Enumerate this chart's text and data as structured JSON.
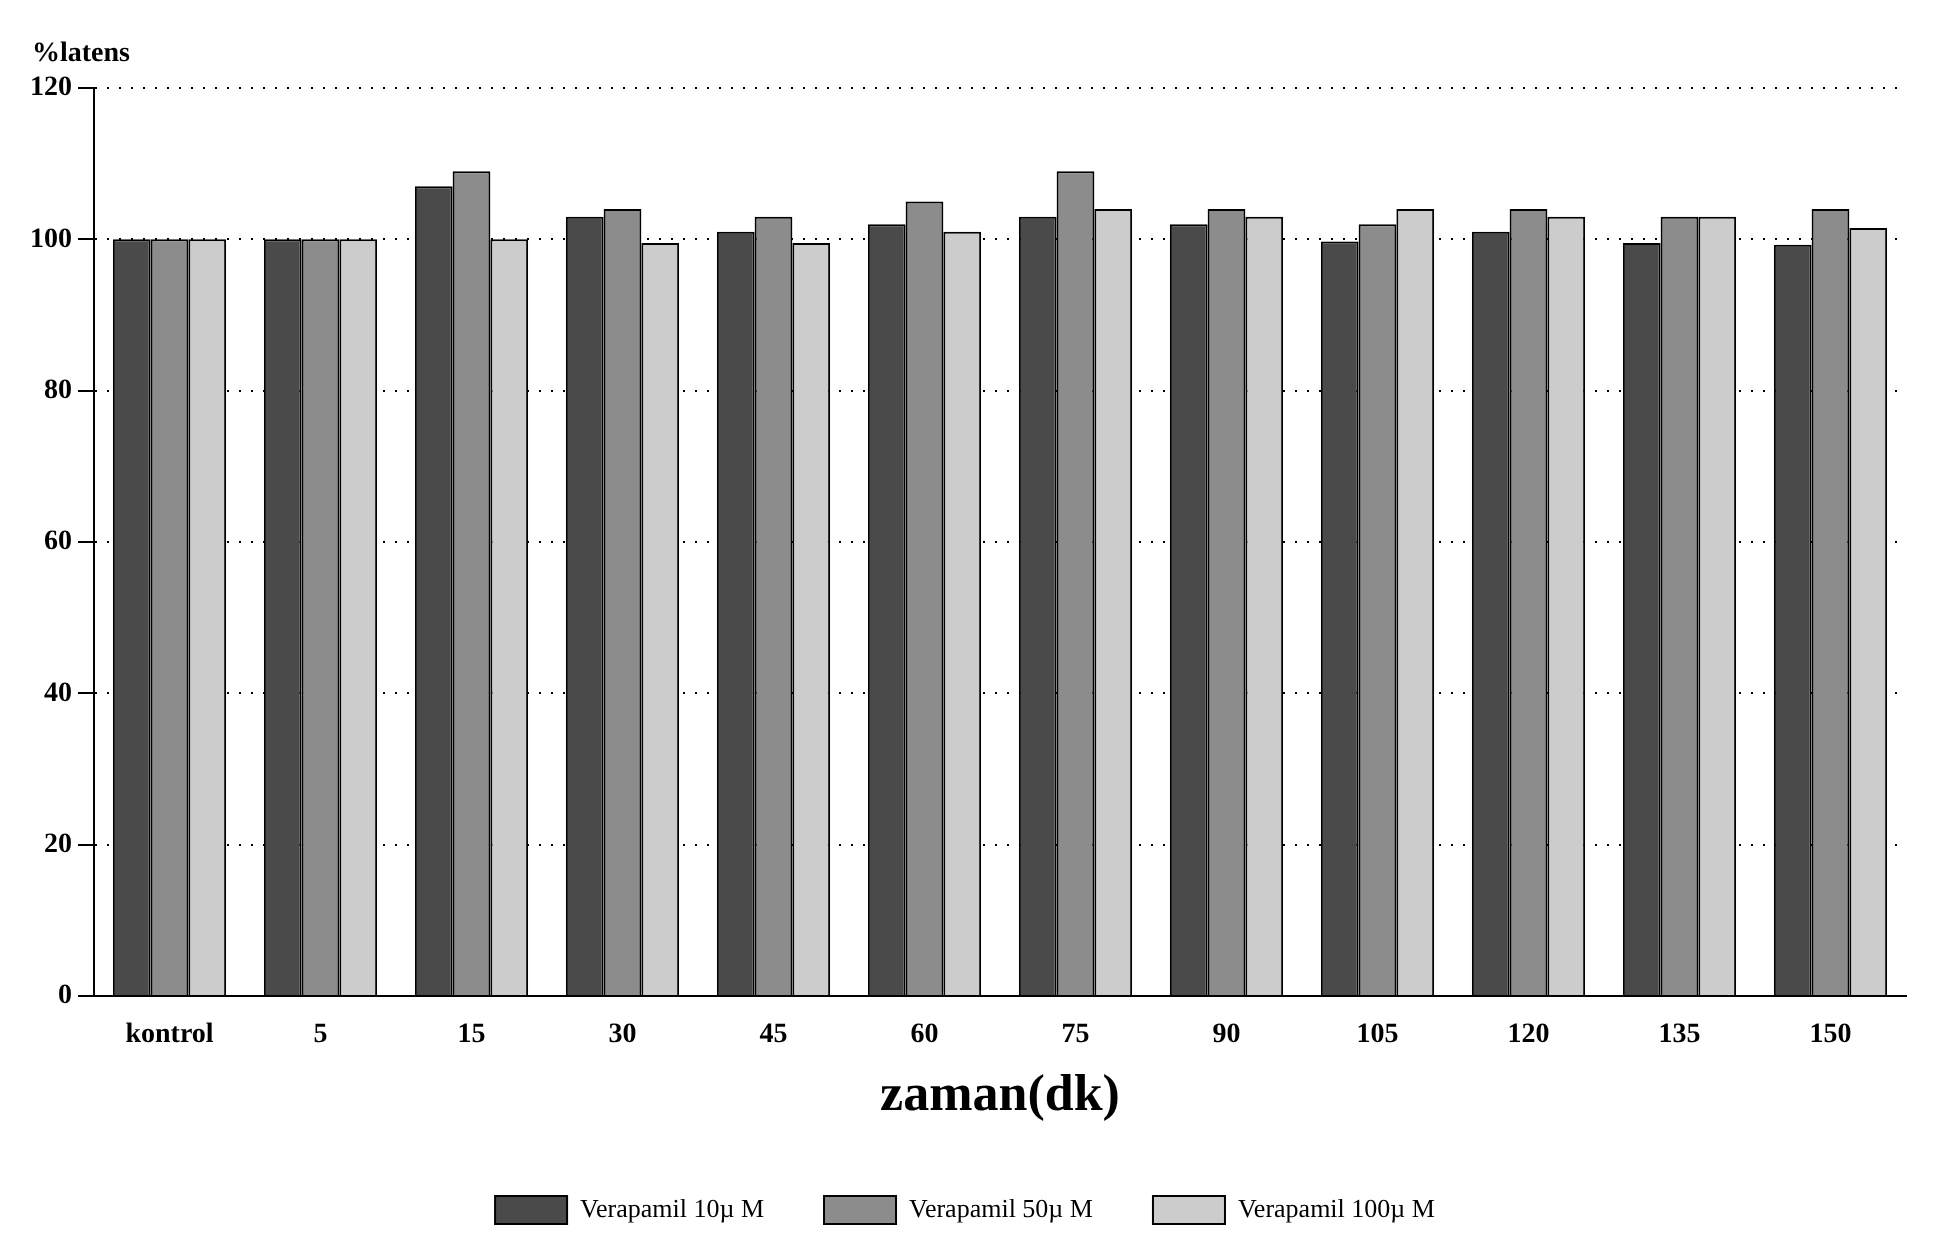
{
  "chart_data": {
    "type": "bar",
    "ylabel": "%latens",
    "xlabel": "zaman(dk)",
    "categories": [
      "kontrol",
      "5",
      "15",
      "30",
      "45",
      "60",
      "75",
      "90",
      "105",
      "120",
      "135",
      "150"
    ],
    "series": [
      {
        "name": "Verapamil 10µ M",
        "color": "#4a4a4a",
        "values": [
          100,
          100,
          107,
          103,
          101,
          102,
          103,
          102,
          99.7,
          101,
          99.5,
          99.3
        ]
      },
      {
        "name": "Verapamil 50µ M",
        "color": "#8c8c8c",
        "values": [
          100,
          100,
          109,
          104,
          103,
          105,
          109,
          104,
          102,
          104,
          103,
          104
        ]
      },
      {
        "name": "Verapamil 100µ M",
        "color": "#cccccc",
        "values": [
          100,
          100,
          100,
          99.5,
          99.5,
          101,
          104,
          103,
          104,
          103,
          103,
          101.5
        ]
      }
    ],
    "ylim": [
      0,
      120
    ],
    "yticks": [
      0,
      20,
      40,
      60,
      80,
      100,
      120
    ],
    "grid": "y",
    "legend": "bottom"
  }
}
